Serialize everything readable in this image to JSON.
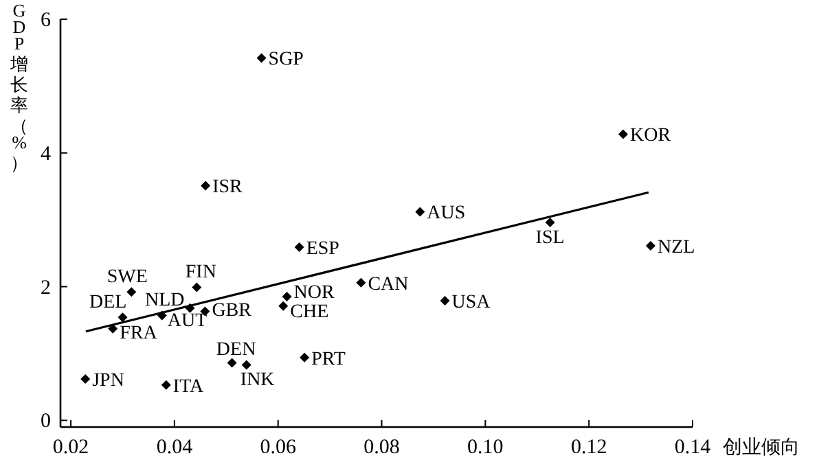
{
  "chart_data": {
    "type": "scatter",
    "xlabel": "创业倾向",
    "ylabel": "GDP增长率（%）",
    "marker": "diamond",
    "grid": false,
    "xlim": [
      0.018,
      0.14
    ],
    "ylim": [
      -0.1,
      6
    ],
    "xticks": [
      0.02,
      0.04,
      0.06,
      0.08,
      {
        "value": 0.1,
        "label": "0.10"
      },
      0.12,
      0.14
    ],
    "yticks": [
      0,
      2,
      4,
      6
    ],
    "series": [
      {
        "color": "#000000",
        "x": [
          0.0568,
          0.046,
          0.1266,
          0.0874,
          0.1125,
          0.1319,
          0.0641,
          0.0317,
          0.0443,
          0.076,
          0.0617,
          0.061,
          0.03,
          0.043,
          0.0459,
          0.0376,
          0.0281,
          0.0511,
          0.0539,
          0.0651,
          0.0922,
          0.0228,
          0.0384
        ],
        "values": [
          5.42,
          3.51,
          4.28,
          3.12,
          2.96,
          2.61,
          2.59,
          1.92,
          1.99,
          2.06,
          1.85,
          1.71,
          1.54,
          1.68,
          1.63,
          1.57,
          1.37,
          0.86,
          0.83,
          0.94,
          1.79,
          0.62,
          0.53
        ]
      },
      {
        "type": "line",
        "color": "#000000",
        "x": [
          0.0229,
          0.1315
        ],
        "values": [
          1.33,
          3.41
        ],
        "marker": "none"
      }
    ],
    "annotations": [
      {
        "text": "SGP",
        "x": 0.0568,
        "y": 5.42
      },
      {
        "text": "ISR",
        "x": 0.046,
        "y": 3.51
      },
      {
        "text": "KOR",
        "x": 0.1266,
        "y": 4.28
      },
      {
        "text": "AUS",
        "x": 0.0874,
        "y": 3.12
      },
      {
        "text": "ISL",
        "x": 0.1125,
        "y": 2.96
      },
      {
        "text": "NZL",
        "x": 0.1319,
        "y": 2.61
      },
      {
        "text": "ESP",
        "x": 0.0641,
        "y": 2.59
      },
      {
        "text": "SWE",
        "x": 0.0317,
        "y": 1.92
      },
      {
        "text": "FIN",
        "x": 0.0443,
        "y": 1.99
      },
      {
        "text": "CAN",
        "x": 0.076,
        "y": 2.06
      },
      {
        "text": "NOR",
        "x": 0.0617,
        "y": 1.85
      },
      {
        "text": "CHE",
        "x": 0.061,
        "y": 1.71
      },
      {
        "text": "DEL",
        "x": 0.03,
        "y": 1.54
      },
      {
        "text": "NLD",
        "x": 0.043,
        "y": 1.68
      },
      {
        "text": "GBR",
        "x": 0.0459,
        "y": 1.63
      },
      {
        "text": "AUT",
        "x": 0.0376,
        "y": 1.57
      },
      {
        "text": "FRA",
        "x": 0.0281,
        "y": 1.37
      },
      {
        "text": "DEN",
        "x": 0.0511,
        "y": 0.86
      },
      {
        "text": "INK",
        "x": 0.0539,
        "y": 0.83
      },
      {
        "text": "PRT",
        "x": 0.0651,
        "y": 0.94
      },
      {
        "text": "USA",
        "x": 0.0922,
        "y": 1.79
      },
      {
        "text": "JPN",
        "x": 0.0228,
        "y": 0.62
      },
      {
        "text": "ITA",
        "x": 0.0384,
        "y": 0.53
      }
    ]
  }
}
